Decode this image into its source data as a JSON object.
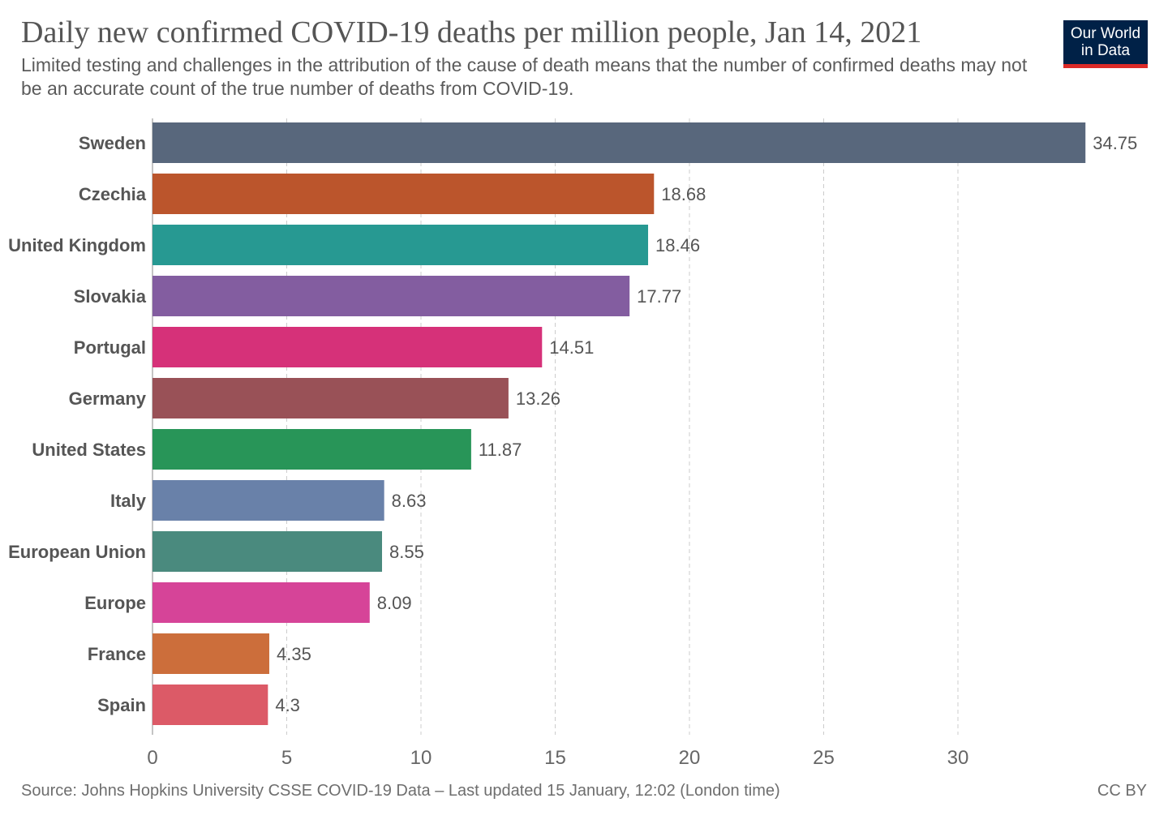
{
  "header": {
    "title": "Daily new confirmed COVID-19 deaths per million people, Jan 14, 2021",
    "subtitle": "Limited testing and challenges in the attribution of the cause of death means that the number of confirmed deaths may not be an accurate count of the true number of deaths from COVID-19.",
    "logo_line1": "Our World",
    "logo_line2": "in Data"
  },
  "footer": {
    "source": "Source: Johns Hopkins University CSSE COVID-19 Data – Last updated 15 January, 12:02 (London time)",
    "license": "CC BY"
  },
  "chart_data": {
    "type": "bar",
    "orientation": "horizontal",
    "title": "Daily new confirmed COVID-19 deaths per million people, Jan 14, 2021",
    "xlabel": "",
    "ylabel": "",
    "xlim": [
      0,
      35
    ],
    "xticks": [
      0,
      5,
      10,
      15,
      20,
      25,
      30
    ],
    "grid": true,
    "categories": [
      "Sweden",
      "Czechia",
      "United Kingdom",
      "Slovakia",
      "Portugal",
      "Germany",
      "United States",
      "Italy",
      "European Union",
      "Europe",
      "France",
      "Spain"
    ],
    "values": [
      34.75,
      18.68,
      18.46,
      17.77,
      14.51,
      13.26,
      11.87,
      8.63,
      8.55,
      8.09,
      4.35,
      4.3
    ],
    "value_labels": [
      "34.75",
      "18.68",
      "18.46",
      "17.77",
      "14.51",
      "13.26",
      "11.87",
      "8.63",
      "8.55",
      "8.09",
      "4.35",
      "4.3"
    ],
    "colors": [
      "#58677c",
      "#bb552c",
      "#279992",
      "#835da0",
      "#d63179",
      "#995157",
      "#289558",
      "#6981a9",
      "#4a8a7e",
      "#d64498",
      "#cc6e3b",
      "#dc5a67"
    ]
  }
}
